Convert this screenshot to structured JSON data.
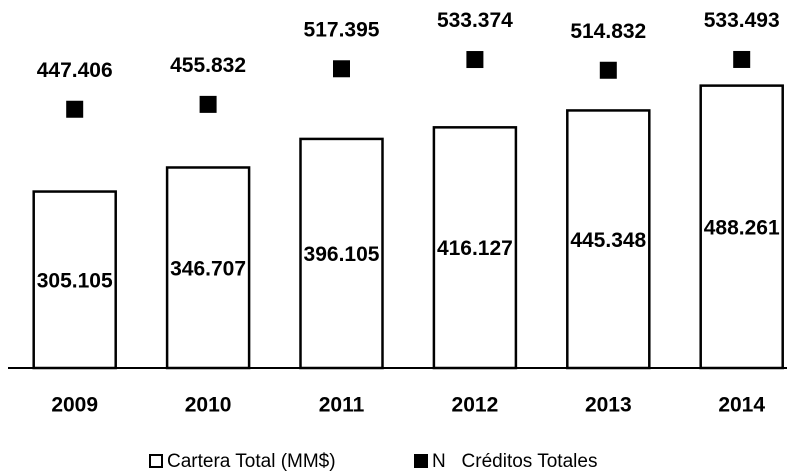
{
  "chart_data": {
    "type": "bar",
    "categories": [
      "2009",
      "2010",
      "2011",
      "2012",
      "2013",
      "2014"
    ],
    "series": [
      {
        "name": "Cartera Total (MM$)",
        "color": "#ffffff",
        "values": [
          305105,
          346707,
          396105,
          416127,
          445348,
          488261
        ],
        "value_labels": [
          "305.105",
          "346.707",
          "396.105",
          "416.127",
          "445.348",
          "488.261"
        ]
      },
      {
        "name": "N   Créditos Totales",
        "color": "#000000",
        "type": "scatter",
        "marker": "square",
        "values": [
          447406,
          455832,
          517395,
          533374,
          514832,
          533493
        ],
        "value_labels": [
          "447.406",
          "455.832",
          "517.395",
          "533.374",
          "514.832",
          "533.493"
        ]
      }
    ],
    "ylim": [
      0,
      600000
    ]
  }
}
